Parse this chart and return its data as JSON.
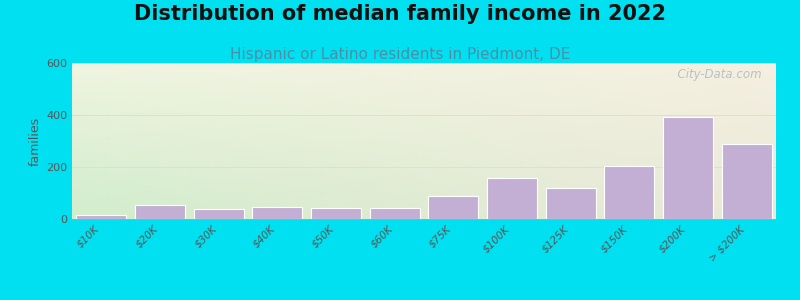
{
  "title": "Distribution of median family income in 2022",
  "subtitle": "Hispanic or Latino residents in Piedmont, DE",
  "categories": [
    "$10K",
    "$20K",
    "$30K",
    "$40K",
    "$50K",
    "$60K",
    "$75K",
    "$100K",
    "$125K",
    "$150K",
    "$200K",
    "> $200K"
  ],
  "values": [
    15,
    52,
    38,
    47,
    42,
    42,
    90,
    158,
    118,
    205,
    392,
    290
  ],
  "bar_color": "#c4afd4",
  "bar_edge_color": "#b8a0cc",
  "ylabel": "families",
  "ylim": [
    0,
    600
  ],
  "yticks": [
    0,
    200,
    400,
    600
  ],
  "background_color": "#00e0f0",
  "plot_bg_top_right": "#f0ede0",
  "plot_bg_bottom_left": "#d0eacc",
  "watermark": "  City-Data.com",
  "title_fontsize": 15,
  "subtitle_fontsize": 11,
  "subtitle_color": "#4a8fa8",
  "grid_color": "#dddddd",
  "tick_color": "#555555"
}
